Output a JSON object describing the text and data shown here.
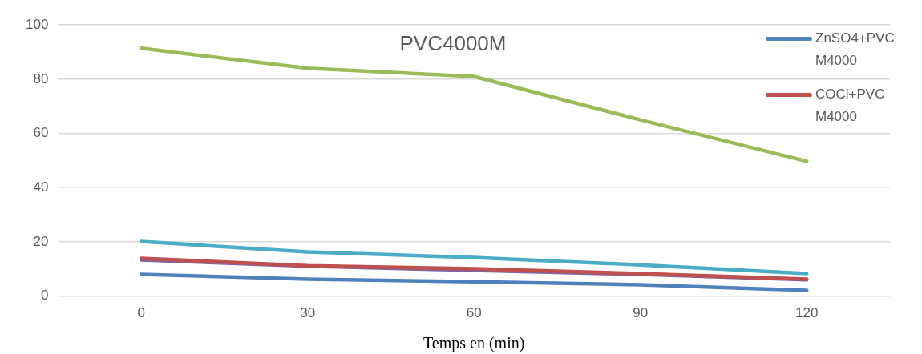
{
  "chart_data": {
    "type": "line",
    "title": "PVC4000M",
    "xlabel": "Temps en (min)",
    "categories": [
      "0",
      "30",
      "60",
      "90",
      "120"
    ],
    "series": [
      {
        "name": "ZnSO4+PVC M4000",
        "color": "#4f81bd",
        "values": [
          8,
          6.2,
          5.3,
          4.2,
          2.1
        ]
      },
      {
        "name": "COCl+PVC M4000",
        "color": "#c0504d",
        "values": [
          13.9,
          11.2,
          10.1,
          8.3,
          6.2
        ]
      },
      {
        "color": "#9bbb59",
        "values": [
          91.4,
          84,
          81,
          65,
          49.7
        ]
      },
      {
        "color": "#8064a2",
        "values": [
          13.3,
          11,
          9.5,
          8,
          6
        ]
      },
      {
        "color": "#4bacc6",
        "values": [
          20.1,
          16.3,
          14.2,
          11.5,
          8.3
        ]
      }
    ],
    "ylim": [
      0,
      100
    ],
    "yticks": [
      0,
      20,
      40,
      60,
      80,
      100
    ],
    "grid": "y",
    "legend": "top right",
    "marker": "none",
    "line_style": "solid"
  }
}
